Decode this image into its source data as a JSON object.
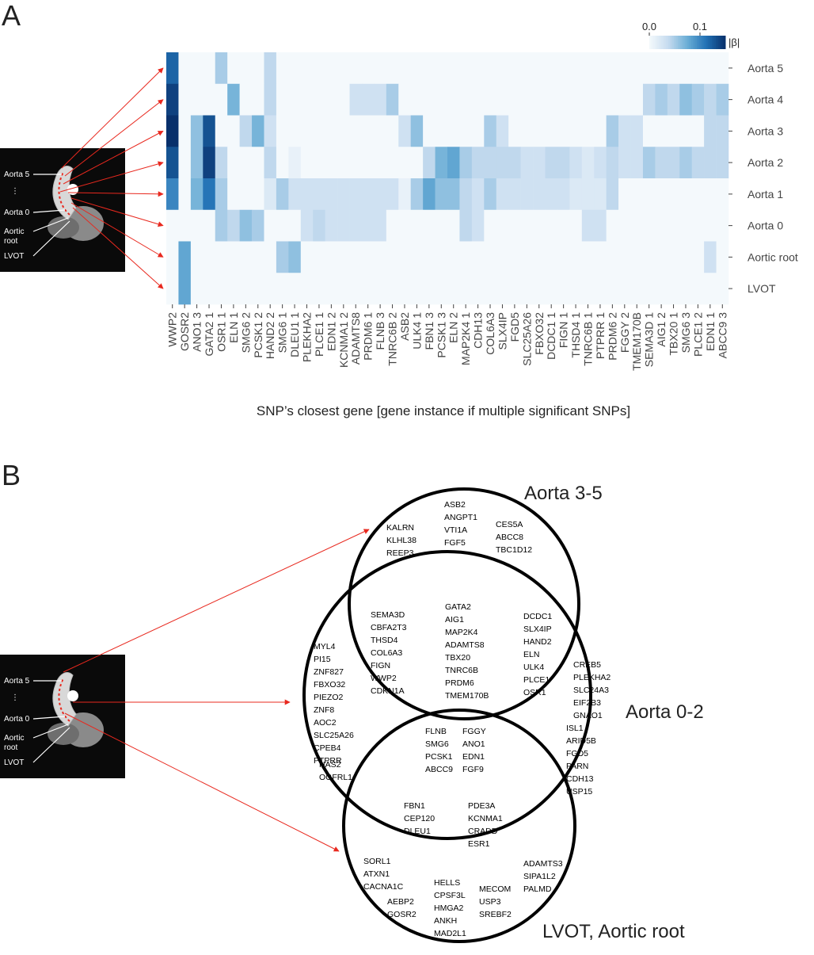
{
  "panels": [
    "A",
    "B"
  ],
  "anatomy_labels": [
    "Aorta 5",
    "⋮",
    "Aorta 0",
    "Aortic",
    "root",
    "LVOT"
  ],
  "chart_data": {
    "type": "heatmap",
    "x_categories": [
      "WWP2",
      "GOSR2",
      "ANO1 3",
      "GATA2 1",
      "OSR1 1",
      "ELN 1",
      "SMG6 2",
      "PCSK1 2",
      "HAND2 2",
      "SMG6 1",
      "DLEU1 1",
      "PLEKHA2",
      "PLCE1 1",
      "EDN1 2",
      "KCNMA1 2",
      "ADAMTS8",
      "PRDM6 1",
      "FLNB 3",
      "TNRC6B 2",
      "ASB2",
      "ULK4 1",
      "FBN1 3",
      "PCSK1 3",
      "ELN 2",
      "MAP2K4 1",
      "CDH13",
      "COL6A3",
      "SLX4IP",
      "FGD5",
      "SLC25A26",
      "FBXO32",
      "DCDC1 1",
      "FIGN 1",
      "THSD4 1",
      "TNRC6B 1",
      "PTPRR 1",
      "PRDM6 2",
      "FGGY 2",
      "TMEM170B",
      "SEMA3D 1",
      "AIG1 2",
      "TBX20 1",
      "SMG6 3",
      "PLCE1 2",
      "EDN1 1",
      "ABCC9 3"
    ],
    "y_categories": [
      "Aorta 5",
      "Aorta 4",
      "Aorta 3",
      "Aorta 2",
      "Aorta 1",
      "Aorta 0",
      "Aortic root",
      "LVOT"
    ],
    "xlabel": "SNP’s closest gene [gene instance if multiple significant SNPs]",
    "values": [
      [
        0.12,
        0,
        0,
        0,
        0.05,
        0,
        0,
        0,
        0.04,
        0,
        0,
        0,
        0,
        0,
        0,
        0,
        0,
        0,
        0,
        0,
        0,
        0,
        0,
        0,
        0,
        0,
        0,
        0,
        0,
        0,
        0,
        0,
        0,
        0,
        0,
        0,
        0,
        0,
        0,
        0,
        0,
        0,
        0,
        0,
        0,
        0
      ],
      [
        0.14,
        0,
        0,
        0,
        0,
        0.07,
        0,
        0,
        0.04,
        0,
        0,
        0,
        0,
        0,
        0,
        0.03,
        0.03,
        0.03,
        0.05,
        0,
        0,
        0,
        0,
        0,
        0,
        0,
        0,
        0,
        0,
        0,
        0,
        0,
        0,
        0,
        0,
        0,
        0,
        0,
        0,
        0.04,
        0.05,
        0.04,
        0.06,
        0.05,
        0.04,
        0.05
      ],
      [
        0.15,
        0,
        0.06,
        0.13,
        0,
        0,
        0.04,
        0.07,
        0.03,
        0,
        0,
        0,
        0,
        0,
        0,
        0,
        0,
        0,
        0,
        0.03,
        0.06,
        0,
        0,
        0,
        0,
        0,
        0.05,
        0.03,
        0,
        0,
        0,
        0,
        0,
        0,
        0,
        0,
        0.05,
        0.03,
        0.03,
        0,
        0,
        0,
        0,
        0,
        0.04,
        0.04
      ],
      [
        0.13,
        0,
        0.06,
        0.14,
        0.04,
        0,
        0,
        0,
        0.04,
        0,
        0.01,
        0,
        0,
        0,
        0,
        0,
        0,
        0,
        0,
        0,
        0,
        0.04,
        0.07,
        0.08,
        0.05,
        0.04,
        0.04,
        0.04,
        0.04,
        0.03,
        0.03,
        0.04,
        0.04,
        0.03,
        0.02,
        0.03,
        0.04,
        0.03,
        0.03,
        0.05,
        0.04,
        0.04,
        0.05,
        0.04,
        0.04,
        0.04
      ],
      [
        0.1,
        0,
        0.07,
        0.11,
        0.05,
        0,
        0,
        0,
        0.02,
        0.05,
        0.03,
        0.03,
        0.03,
        0.03,
        0.03,
        0.03,
        0.03,
        0.03,
        0.03,
        0.01,
        0.05,
        0.08,
        0.06,
        0.06,
        0.04,
        0.03,
        0.05,
        0.03,
        0.03,
        0.03,
        0.03,
        0.03,
        0.03,
        0.02,
        0.02,
        0.02,
        0.04,
        0,
        0,
        0,
        0,
        0,
        0,
        0,
        0,
        0
      ],
      [
        0,
        0,
        0,
        0,
        0.05,
        0.04,
        0.06,
        0.05,
        0,
        0,
        0,
        0.03,
        0.04,
        0.03,
        0.03,
        0.03,
        0.03,
        0.03,
        0,
        0,
        0,
        0,
        0,
        0,
        0.04,
        0.03,
        0,
        0,
        0,
        0,
        0,
        0,
        0,
        0,
        0.03,
        0.03,
        0,
        0,
        0,
        0,
        0,
        0,
        0,
        0,
        0,
        0
      ],
      [
        0,
        0.08,
        0,
        0,
        0,
        0,
        0,
        0,
        0,
        0.05,
        0.06,
        0,
        0,
        0,
        0,
        0,
        0,
        0,
        0,
        0,
        0,
        0,
        0,
        0,
        0,
        0,
        0,
        0,
        0,
        0,
        0,
        0,
        0,
        0,
        0,
        0,
        0,
        0,
        0,
        0,
        0,
        0,
        0,
        0,
        0.03,
        0
      ],
      [
        0,
        0.08,
        0,
        0,
        0,
        0,
        0,
        0,
        0,
        0,
        0,
        0,
        0,
        0,
        0,
        0,
        0,
        0,
        0,
        0,
        0,
        0,
        0,
        0,
        0,
        0,
        0,
        0,
        0,
        0,
        0,
        0,
        0,
        0,
        0,
        0,
        0,
        0,
        0,
        0,
        0,
        0,
        0,
        0,
        0,
        0
      ]
    ],
    "colormap": [
      "#f4f9fc",
      "#c6dbef",
      "#6baed6",
      "#2171b5",
      "#08306b"
    ],
    "colorbar": {
      "label": "|β|",
      "lim": [
        0,
        0.15
      ],
      "ticks": [
        {
          "value": 0,
          "label": "0.0"
        },
        0.1
      ]
    }
  },
  "venn": {
    "sets": [
      "Aorta 3-5",
      "Aorta 0-2",
      "LVOT, Aortic root"
    ],
    "regions": [
      [
        [
          "KALRN",
          "KLHL38",
          "REEP3"
        ],
        [
          "ASB2",
          "ANGPT1",
          "VTI1A",
          "FGF5"
        ],
        [
          "CES5A",
          "ABCC8",
          "TBC1D12"
        ]
      ],
      [
        [
          "SEMA3D",
          "CBFA2T3",
          "THSD4",
          "COL6A3",
          "FIGN",
          "WWP2",
          "CDKN1A"
        ],
        [
          "GATA2",
          "AIG1",
          "MAP2K4",
          "ADAMTS8",
          "TBX20",
          "TNRC6B",
          "PRDM6",
          "TMEM170B"
        ],
        [
          "DCDC1",
          "SLX4IP",
          "HAND2",
          "ELN",
          "ULK4",
          "PLCE1",
          "OSR1"
        ]
      ],
      [
        [
          "MYL4",
          "PI15",
          "ZNF827",
          "FBXO32",
          "PIEZO2",
          "ZNF8",
          "AOC2",
          "SLC25A26",
          "CPEB4",
          "PTPRR"
        ],
        [
          "HAS2",
          "OGFRL1"
        ],
        [
          "CREB5",
          "PLEKHA2",
          "SLC24A3",
          "EIF2B3",
          "GNAO1"
        ],
        [
          "ISL1",
          "ARID5B",
          "FGD5",
          "PARN",
          "CDH13",
          "USP15"
        ]
      ],
      [
        [
          "FLNB",
          "SMG6",
          "PCSK1",
          "ABCC9"
        ],
        [
          "FGGY",
          "ANO1",
          "EDN1",
          "FGF9"
        ]
      ],
      [
        [
          "FBN1",
          "CEP120",
          "DLEU1"
        ],
        [
          "PDE3A",
          "KCNMA1",
          "CRADD",
          "ESR1"
        ]
      ],
      [
        [
          "SORL1",
          "ATXN1",
          "CACNA1C"
        ],
        [
          "AEBP2",
          "GOSR2"
        ],
        [
          "HELLS",
          "CPSF3L",
          "HMGA2",
          "ANKH",
          "MAD2L1"
        ],
        [
          "MECOM",
          "USP3",
          "SREBF2"
        ],
        [
          "ADAMTS3",
          "SIPA1L2",
          "PALMD"
        ]
      ]
    ]
  }
}
